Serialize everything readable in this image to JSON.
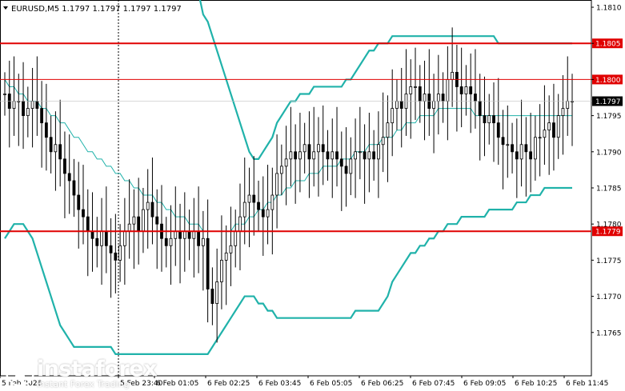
{
  "header": {
    "title": "EURUSD,M5  1.1797 1.1797 1.1797 1.1797"
  },
  "logo": {
    "name": "instaforex",
    "tagline": "Instant Forex Trading"
  },
  "colors": {
    "resistance": "#e00000",
    "bollinger": "#20b2aa",
    "candle": "#000000",
    "price_label_bg": "#000000",
    "level_label_bg": "#e00000"
  },
  "chart_data": {
    "type": "candlestick",
    "symbol": "EURUSD",
    "timeframe": "M5",
    "ylim": [
      1.1759,
      1.1811
    ],
    "y_ticks": [
      "1.1810",
      "1.1805",
      "1.1800",
      "1.1795",
      "1.1790",
      "1.1785",
      "1.1780",
      "1.1775",
      "1.1770",
      "1.1765"
    ],
    "x_ticks": [
      "5 Feb 2026",
      "5 Feb 23:40",
      "6 Feb 01:05",
      "6 Feb 02:25",
      "6 Feb 03:45",
      "6 Feb 05:05",
      "6 Feb 06:25",
      "6 Feb 07:45",
      "6 Feb 09:05",
      "6 Feb 10:25",
      "6 Feb 11:45"
    ],
    "levels": [
      {
        "value": 1.1805,
        "label": "1.1805",
        "style": "thick"
      },
      {
        "value": 1.18,
        "label": "1.1800",
        "style": "thin"
      },
      {
        "value": 1.1779,
        "label": "1.1779",
        "style": "thick"
      }
    ],
    "current_price": {
      "value": 1.1797,
      "label": "1.1797"
    },
    "closes": [
      1.1798,
      1.1796,
      1.1797,
      1.1797,
      1.1795,
      1.1796,
      1.1797,
      1.1796,
      1.1794,
      1.1792,
      1.179,
      1.1791,
      1.1789,
      1.1787,
      1.1786,
      1.1784,
      1.1782,
      1.1781,
      1.1779,
      1.1778,
      1.1777,
      1.1779,
      1.1777,
      1.1776,
      1.1775,
      1.1777,
      1.1779,
      1.178,
      1.1781,
      1.1779,
      1.1782,
      1.1783,
      1.1781,
      1.178,
      1.1778,
      1.1777,
      1.1778,
      1.1779,
      1.1778,
      1.1779,
      1.1778,
      1.1779,
      1.1777,
      1.1778,
      1.1771,
      1.1769,
      1.1772,
      1.1775,
      1.1776,
      1.1777,
      1.1779,
      1.1781,
      1.1783,
      1.1784,
      1.1783,
      1.1782,
      1.1781,
      1.1782,
      1.1784,
      1.1787,
      1.1788,
      1.1789,
      1.179,
      1.1789,
      1.179,
      1.1791,
      1.1789,
      1.179,
      1.1791,
      1.179,
      1.1789,
      1.179,
      1.1789,
      1.1788,
      1.1787,
      1.1789,
      1.179,
      1.179,
      1.1789,
      1.179,
      1.1789,
      1.1791,
      1.1792,
      1.1794,
      1.1796,
      1.1797,
      1.1796,
      1.1798,
      1.1799,
      1.1799,
      1.1797,
      1.1798,
      1.1796,
      1.1797,
      1.1798,
      1.1797,
      1.18,
      1.1801,
      1.1799,
      1.1798,
      1.1799,
      1.1798,
      1.1797,
      1.1795,
      1.1794,
      1.1795,
      1.1794,
      1.1792,
      1.1791,
      1.1791,
      1.179,
      1.1789,
      1.1791,
      1.179,
      1.1789,
      1.1792,
      1.1792,
      1.1793,
      1.1794,
      1.1792,
      1.1795,
      1.1796,
      1.1797,
      1.1797
    ],
    "bollinger_upper": [
      1.18,
      1.1799,
      1.1799,
      1.1798,
      1.1798,
      1.1797,
      1.1797,
      1.1797,
      1.1796,
      1.1796,
      1.1795,
      1.1795,
      1.1794,
      1.1794,
      1.1793,
      1.1792,
      1.1792,
      1.1791,
      1.179,
      1.179,
      1.1789,
      1.1789,
      1.1788,
      1.1788,
      1.1787,
      1.1787,
      1.1786,
      1.1786,
      1.1785,
      1.1785,
      1.1784,
      1.1784,
      1.1784,
      1.1783,
      1.1783,
      1.1782,
      1.1782,
      1.1781,
      1.1781,
      1.1781,
      1.178,
      1.178,
      1.178,
      1.1779,
      1.1779,
      1.1779,
      1.1779,
      1.1779,
      1.1779,
      1.1779,
      1.178,
      1.178,
      1.178,
      1.1781,
      1.1781,
      1.1782,
      1.1782,
      1.1783,
      1.1783,
      1.1784,
      1.1784,
      1.1785,
      1.1785,
      1.1786,
      1.1786,
      1.1786,
      1.1787,
      1.1787,
      1.1787,
      1.1788,
      1.1788,
      1.1788,
      1.1788,
      1.1789,
      1.1789,
      1.1789,
      1.179,
      1.179,
      1.179,
      1.1791,
      1.1791,
      1.1791,
      1.1792,
      1.1792,
      1.1792,
      1.1793,
      1.1793,
      1.1794,
      1.1794,
      1.1794,
      1.1795,
      1.1795,
      1.1795,
      1.1795,
      1.1796,
      1.1796,
      1.1796,
      1.1796,
      1.1796,
      1.1796,
      1.1796,
      1.1796,
      1.1795,
      1.1795,
      1.1795,
      1.1795,
      1.1795,
      1.1795,
      1.1795,
      1.1795,
      1.1795,
      1.1795,
      1.1795,
      1.1795,
      1.1795,
      1.1795,
      1.1795,
      1.1795,
      1.1795,
      1.1795,
      1.1795,
      1.1795,
      1.1795,
      1.1795
    ],
    "bollinger_lower": [
      1.1778,
      1.1779,
      1.178,
      1.178,
      1.178,
      1.1779,
      1.1778,
      1.1776,
      1.1774,
      1.1772,
      1.177,
      1.1768,
      1.1766,
      1.1765,
      1.1764,
      1.1763,
      1.1763,
      1.1763,
      1.1763,
      1.1763,
      1.1763,
      1.1763,
      1.1763,
      1.1763,
      1.1762,
      1.1762,
      1.1762,
      1.1762,
      1.1762,
      1.1762,
      1.1762,
      1.1762,
      1.1762,
      1.1762,
      1.1762,
      1.1762,
      1.1762,
      1.1762,
      1.1762,
      1.1762,
      1.1762,
      1.1762,
      1.1762,
      1.1762,
      1.1762,
      1.1763,
      1.1764,
      1.1765,
      1.1766,
      1.1767,
      1.1768,
      1.1769,
      1.177,
      1.177,
      1.177,
      1.1769,
      1.1769,
      1.1768,
      1.1768,
      1.1767,
      1.1767,
      1.1767,
      1.1767,
      1.1767,
      1.1767,
      1.1767,
      1.1767,
      1.1767,
      1.1767,
      1.1767,
      1.1767,
      1.1767,
      1.1767,
      1.1767,
      1.1767,
      1.1767,
      1.1768,
      1.1768,
      1.1768,
      1.1768,
      1.1768,
      1.1768,
      1.1769,
      1.177,
      1.1772,
      1.1773,
      1.1774,
      1.1775,
      1.1776,
      1.1776,
      1.1777,
      1.1777,
      1.1778,
      1.1778,
      1.1779,
      1.1779,
      1.178,
      1.178,
      1.178,
      1.1781,
      1.1781,
      1.1781,
      1.1781,
      1.1781,
      1.1781,
      1.1782,
      1.1782,
      1.1782,
      1.1782,
      1.1782,
      1.1782,
      1.1783,
      1.1783,
      1.1783,
      1.1784,
      1.1784,
      1.1784,
      1.1785,
      1.1785,
      1.1785,
      1.1785,
      1.1785,
      1.1785,
      1.1785
    ],
    "bollinger_outer_upper": [
      1.182,
      1.182,
      1.182,
      1.182,
      1.182,
      1.182,
      1.182,
      1.182,
      1.182,
      1.182,
      1.182,
      1.182,
      1.182,
      1.182,
      1.182,
      1.182,
      1.182,
      1.182,
      1.182,
      1.182,
      1.182,
      1.182,
      1.182,
      1.182,
      1.182,
      1.182,
      1.182,
      1.182,
      1.182,
      1.182,
      1.182,
      1.182,
      1.182,
      1.182,
      1.182,
      1.182,
      1.182,
      1.182,
      1.182,
      1.182,
      1.182,
      1.182,
      1.1812,
      1.1809,
      1.1808,
      1.1806,
      1.1804,
      1.1802,
      1.18,
      1.1798,
      1.1796,
      1.1794,
      1.1792,
      1.179,
      1.1789,
      1.1789,
      1.179,
      1.1791,
      1.1792,
      1.1794,
      1.1795,
      1.1796,
      1.1797,
      1.1797,
      1.1798,
      1.1798,
      1.1798,
      1.1799,
      1.1799,
      1.1799,
      1.1799,
      1.1799,
      1.1799,
      1.1799,
      1.18,
      1.18,
      1.1801,
      1.1802,
      1.1803,
      1.1804,
      1.1804,
      1.1805,
      1.1805,
      1.1805,
      1.1806,
      1.1806,
      1.1806,
      1.1806,
      1.1806,
      1.1806,
      1.1806,
      1.1806,
      1.1806,
      1.1806,
      1.1806,
      1.1806,
      1.1806,
      1.1806,
      1.1806,
      1.1806,
      1.1806,
      1.1806,
      1.1806,
      1.1806,
      1.1806,
      1.1806,
      1.1806,
      1.1805,
      1.1805,
      1.1805,
      1.1805,
      1.1805,
      1.1805,
      1.1805,
      1.1805,
      1.1805,
      1.1805,
      1.1805,
      1.1805,
      1.1805,
      1.1805,
      1.1805,
      1.1805,
      1.1805
    ]
  }
}
